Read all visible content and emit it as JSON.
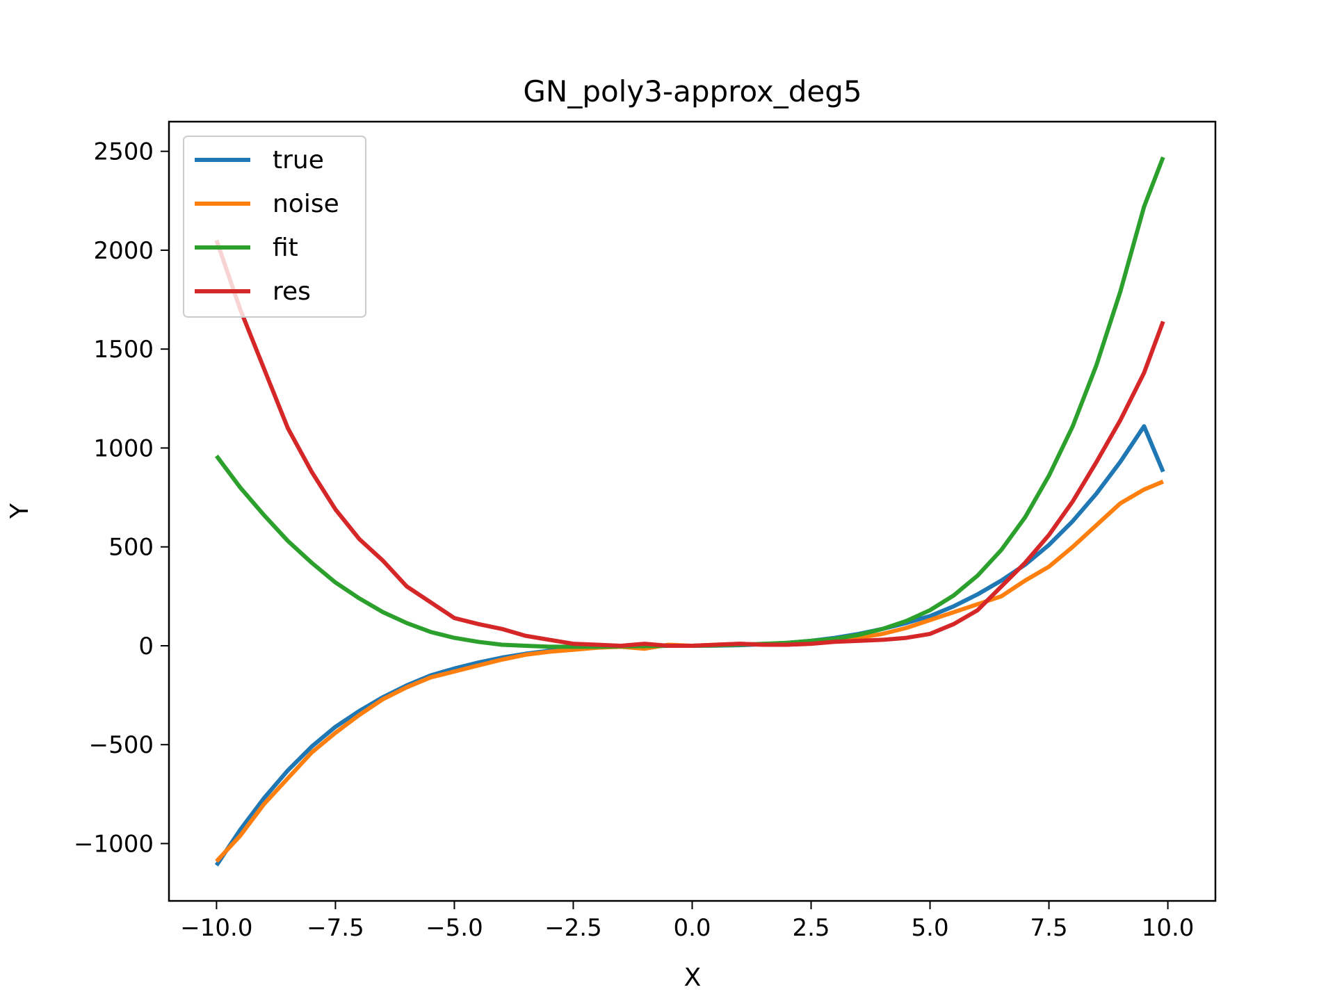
{
  "chart_data": {
    "type": "line",
    "title": "GN_poly3-approx_deg5",
    "xlabel": "X",
    "ylabel": "Y",
    "xlim": [
      -11.0,
      11.0
    ],
    "ylim": [
      -1290,
      2650
    ],
    "x_ticks": [
      -10.0,
      -7.5,
      -5.0,
      -2.5,
      0.0,
      2.5,
      5.0,
      7.5,
      10.0
    ],
    "x_tick_labels": [
      "−10.0",
      "−7.5",
      "−5.0",
      "−2.5",
      "0.0",
      "2.5",
      "5.0",
      "7.5",
      "10.0"
    ],
    "y_ticks": [
      -1000,
      -500,
      0,
      500,
      1000,
      1500,
      2000,
      2500
    ],
    "y_tick_labels": [
      "−1000",
      "−500",
      "0",
      "500",
      "1000",
      "1500",
      "2000",
      "2500"
    ],
    "grid": false,
    "legend_position": "top-left",
    "x": [
      -10.0,
      -9.5,
      -9.0,
      -8.5,
      -8.0,
      -7.5,
      -7.0,
      -6.5,
      -6.0,
      -5.5,
      -5.0,
      -4.5,
      -4.0,
      -3.5,
      -3.0,
      -2.5,
      -2.0,
      -1.5,
      -1.0,
      -0.5,
      0.0,
      0.5,
      1.0,
      1.5,
      2.0,
      2.5,
      3.0,
      3.5,
      4.0,
      4.5,
      5.0,
      5.5,
      6.0,
      6.5,
      7.0,
      7.5,
      8.0,
      8.5,
      9.0,
      9.5,
      9.9
    ],
    "series": [
      {
        "name": "true",
        "color": "#1f77b4",
        "values": [
          -1110,
          -930,
          -770,
          -630,
          -510,
          -410,
          -330,
          -260,
          -200,
          -150,
          -115,
          -85,
          -60,
          -40,
          -25,
          -15,
          -8,
          -3,
          -1,
          0,
          0,
          1,
          3,
          8,
          15,
          25,
          40,
          60,
          85,
          115,
          150,
          200,
          260,
          330,
          410,
          510,
          630,
          770,
          930,
          1110,
          880
        ]
      },
      {
        "name": "noise",
        "color": "#ff7f0e",
        "values": [
          -1090,
          -960,
          -800,
          -670,
          -540,
          -440,
          -350,
          -270,
          -210,
          -160,
          -130,
          -100,
          -70,
          -45,
          -30,
          -20,
          -10,
          -5,
          -15,
          5,
          0,
          5,
          10,
          5,
          5,
          20,
          25,
          40,
          60,
          90,
          130,
          170,
          210,
          250,
          330,
          400,
          500,
          610,
          720,
          790,
          830
        ]
      },
      {
        "name": "fit",
        "color": "#2ca02c",
        "values": [
          960,
          800,
          660,
          530,
          420,
          320,
          240,
          170,
          115,
          70,
          40,
          20,
          5,
          0,
          -5,
          -5,
          -5,
          -3,
          -2,
          0,
          0,
          2,
          5,
          10,
          15,
          25,
          35,
          55,
          85,
          125,
          180,
          255,
          355,
          485,
          650,
          860,
          1110,
          1420,
          1790,
          2220,
          2470
        ]
      },
      {
        "name": "res",
        "color": "#d62728",
        "values": [
          2050,
          1700,
          1400,
          1100,
          880,
          690,
          540,
          430,
          300,
          220,
          140,
          110,
          85,
          50,
          30,
          10,
          5,
          0,
          10,
          0,
          0,
          5,
          10,
          5,
          5,
          10,
          20,
          25,
          30,
          40,
          60,
          110,
          180,
          300,
          420,
          560,
          730,
          930,
          1140,
          1380,
          1640
        ]
      }
    ]
  }
}
